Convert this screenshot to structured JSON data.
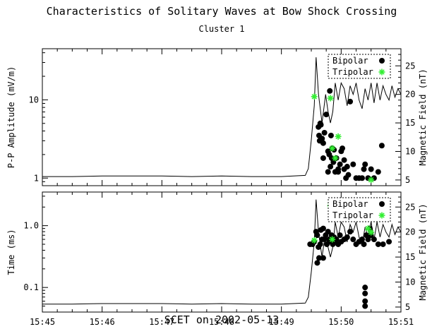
{
  "chart_data": {
    "title": "Characteristics of Solitary Waves at Bow Shock Crossing",
    "subtitle": "Cluster 1",
    "xlabel": "SCET on 2002-05-13",
    "x_ticks": [
      "15:45",
      "15:46",
      "15:47",
      "15:48",
      "15:49",
      "15:50",
      "15:51"
    ],
    "x_range_minutes": [
      45,
      51
    ],
    "panels": [
      {
        "type": "scatter",
        "ylabel": "P-P Amplitude (mV/m)",
        "yscale": "log",
        "ylim": [
          0.8,
          45
        ],
        "yticks": [
          1,
          10
        ],
        "yticklabels": [
          "1",
          "10"
        ],
        "y2label": "Magnetic Field (nT)",
        "y2lim": [
          4,
          28
        ],
        "y2ticks": [
          5,
          10,
          15,
          20,
          25
        ],
        "y2ticklabels": [
          "5",
          "10",
          "15",
          "20",
          "25"
        ],
        "legend": {
          "position": "top-right",
          "entries": [
            {
              "label": "Bipolar",
              "marker": "filled-circle"
            },
            {
              "label": "Tripolar",
              "marker": "green-asterisk"
            }
          ]
        },
        "series": [
          {
            "name": "Bipolar",
            "marker": "circle",
            "color": "#000000",
            "x": [
              49.62,
              49.63,
              49.64,
              49.65,
              49.66,
              49.68,
              49.7,
              49.72,
              49.75,
              49.78,
              49.8,
              49.81,
              49.83,
              49.84,
              49.85,
              49.87,
              49.88,
              49.9,
              49.92,
              49.95,
              49.98,
              50.0,
              50.02,
              50.05,
              50.08,
              50.1,
              50.15,
              50.2,
              50.25,
              50.3,
              50.35,
              50.38,
              50.4,
              50.45,
              50.5,
              50.55,
              50.62,
              50.68,
              49.78,
              49.82,
              50.05,
              50.12,
              49.7,
              49.95
            ],
            "y": [
              4.5,
              3.5,
              3.0,
              5.0,
              4.8,
              3.2,
              2.8,
              3.8,
              6.5,
              2.2,
              2.0,
              13.0,
              3.5,
              1.8,
              2.4,
              1.6,
              2.3,
              1.2,
              1.8,
              1.3,
              1.5,
              2.2,
              2.4,
              1.3,
              1.0,
              1.4,
              9.5,
              1.5,
              1.0,
              1.0,
              1.0,
              1.3,
              1.5,
              1.0,
              1.3,
              1.0,
              1.2,
              2.6,
              1.2,
              1.4,
              1.7,
              1.1,
              1.8,
              1.2
            ]
          },
          {
            "name": "Tripolar",
            "marker": "asterisk",
            "color": "#33ee33",
            "x": [
              49.55,
              49.82,
              49.85,
              49.9,
              49.95,
              50.5
            ],
            "y": [
              11.0,
              10.5,
              2.4,
              1.8,
              3.4,
              0.95
            ]
          },
          {
            "name": "Magnetic Field",
            "marker": "line",
            "color": "#000000",
            "axis": "right",
            "x": [
              45.0,
              45.5,
              46.0,
              46.5,
              47.0,
              47.5,
              48.0,
              48.5,
              49.0,
              49.4,
              49.45,
              49.5,
              49.55,
              49.58,
              49.62,
              49.68,
              49.74,
              49.78,
              49.82,
              49.86,
              49.9,
              49.95,
              50.0,
              50.05,
              50.1,
              50.15,
              50.2,
              50.25,
              50.3,
              50.35,
              50.4,
              50.45,
              50.5,
              50.55,
              50.6,
              50.65,
              50.7,
              50.75,
              50.8,
              50.85,
              50.9,
              50.95,
              51.0
            ],
            "y": [
              5.6,
              5.6,
              5.7,
              5.7,
              5.7,
              5.6,
              5.7,
              5.6,
              5.6,
              5.8,
              7.0,
              12.0,
              18.0,
              26.5,
              20.0,
              15.0,
              20.0,
              17.0,
              15.0,
              17.0,
              22.0,
              19.0,
              22.0,
              21.0,
              18.0,
              21.5,
              20.0,
              22.0,
              19.0,
              17.5,
              21.0,
              19.0,
              22.0,
              18.5,
              22.0,
              19.0,
              21.5,
              20.0,
              19.0,
              21.5,
              19.5,
              21.0,
              20.0
            ]
          }
        ]
      },
      {
        "type": "scatter",
        "ylabel": "Time (ms)",
        "yscale": "log",
        "ylim": [
          0.04,
          3.5
        ],
        "yticks": [
          0.1,
          1.0
        ],
        "yticklabels": [
          "0.1",
          "1.0"
        ],
        "y2label": "Magnetic Field (nT)",
        "y2lim": [
          4,
          28
        ],
        "y2ticks": [
          5,
          10,
          15,
          20,
          25
        ],
        "y2ticklabels": [
          "5",
          "10",
          "15",
          "20",
          "25"
        ],
        "legend": {
          "position": "top-right",
          "entries": [
            {
              "label": "Bipolar",
              "marker": "filled-circle"
            },
            {
              "label": "Tripolar",
              "marker": "green-asterisk"
            }
          ]
        },
        "series": [
          {
            "name": "Bipolar",
            "marker": "circle",
            "color": "#000000",
            "x": [
              49.48,
              49.52,
              49.55,
              49.58,
              49.6,
              49.62,
              49.63,
              49.65,
              49.66,
              49.68,
              49.7,
              49.72,
              49.74,
              49.76,
              49.78,
              49.8,
              49.82,
              49.84,
              49.86,
              49.88,
              49.9,
              49.92,
              49.95,
              49.98,
              50.0,
              50.05,
              50.1,
              50.15,
              50.2,
              50.25,
              50.3,
              50.35,
              50.38,
              50.4,
              50.42,
              50.45,
              50.48,
              50.5,
              50.55,
              50.62,
              50.7,
              50.8,
              50.4,
              50.4,
              50.4,
              50.4,
              49.6,
              49.7
            ],
            "y": [
              0.5,
              0.5,
              0.55,
              0.8,
              0.7,
              0.45,
              0.3,
              0.5,
              0.85,
              0.6,
              0.9,
              0.6,
              0.7,
              0.5,
              0.8,
              0.6,
              0.55,
              0.7,
              0.5,
              0.65,
              0.55,
              0.6,
              0.5,
              0.7,
              0.55,
              0.6,
              0.65,
              0.8,
              0.6,
              0.5,
              0.55,
              0.6,
              0.5,
              2.0,
              0.7,
              0.6,
              0.9,
              0.7,
              0.6,
              0.5,
              0.5,
              0.55,
              0.1,
              0.08,
              0.06,
              0.05,
              0.25,
              0.3
            ]
          },
          {
            "name": "Tripolar",
            "marker": "asterisk",
            "color": "#33ee33",
            "x": [
              49.55,
              49.82,
              49.88,
              49.95,
              49.85,
              50.45,
              50.5
            ],
            "y": [
              0.58,
              2.1,
              2.0,
              1.9,
              0.6,
              0.9,
              0.78
            ]
          },
          {
            "name": "Magnetic Field",
            "marker": "line",
            "color": "#000000",
            "axis": "right",
            "x": [
              45.0,
              45.5,
              46.0,
              46.5,
              47.0,
              47.5,
              48.0,
              48.5,
              49.0,
              49.4,
              49.45,
              49.5,
              49.55,
              49.58,
              49.62,
              49.68,
              49.74,
              49.78,
              49.82,
              49.86,
              49.9,
              49.95,
              50.0,
              50.05,
              50.1,
              50.15,
              50.2,
              50.25,
              50.3,
              50.35,
              50.4,
              50.45,
              50.5,
              50.55,
              50.6,
              50.65,
              50.7,
              50.75,
              50.8,
              50.85,
              50.9,
              50.95,
              51.0
            ],
            "y": [
              5.6,
              5.6,
              5.7,
              5.7,
              5.7,
              5.6,
              5.7,
              5.6,
              5.6,
              5.8,
              7.0,
              12.0,
              18.0,
              26.5,
              20.0,
              15.0,
              20.0,
              17.0,
              15.0,
              17.0,
              22.0,
              19.0,
              22.0,
              21.0,
              18.0,
              21.5,
              20.0,
              22.0,
              19.0,
              17.5,
              21.0,
              19.0,
              22.0,
              18.5,
              22.0,
              19.0,
              21.5,
              20.0,
              19.0,
              21.5,
              19.5,
              21.0,
              20.0
            ]
          }
        ]
      }
    ]
  }
}
